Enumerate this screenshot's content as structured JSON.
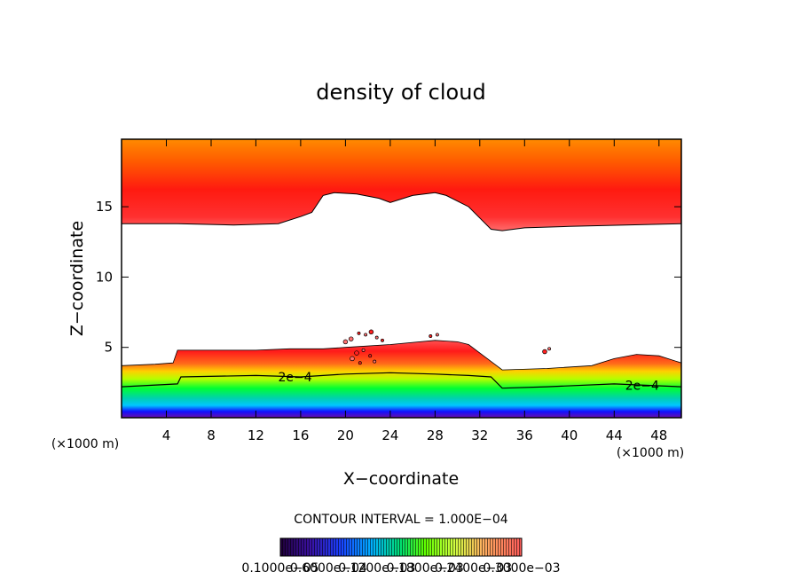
{
  "chart_data": {
    "type": "heatmap",
    "title": "density of cloud",
    "xlabel": "X−coordinate",
    "ylabel": "Z−coordinate",
    "x_unit_left": "(×1000 m)",
    "x_unit_right": "(×1000 m)",
    "xlim": [
      0,
      50
    ],
    "ylim": [
      0,
      19.8
    ],
    "x_ticks": [
      4,
      8,
      12,
      16,
      20,
      24,
      28,
      32,
      36,
      40,
      44,
      48
    ],
    "y_ticks": [
      5,
      10,
      15
    ],
    "contour_interval_text": "CONTOUR INTERVAL = 1.000E−04",
    "contour_labels": [
      {
        "text": "2e−4",
        "x": 15.5,
        "z": 2.9
      },
      {
        "text": "2e−4",
        "x": 46.5,
        "z": 2.3
      }
    ],
    "colorbar_labels": [
      "0.1000e−05",
      "0.6000e−04",
      "0.1200e−03",
      "0.1800e−03",
      "0.2400e−03",
      "0.3000e−03"
    ],
    "upper_layer_base": [
      [
        0,
        13.8
      ],
      [
        5,
        13.8
      ],
      [
        10,
        13.7
      ],
      [
        14,
        13.8
      ],
      [
        16,
        14.3
      ],
      [
        17,
        14.6
      ],
      [
        18,
        15.8
      ],
      [
        19,
        16.0
      ],
      [
        21,
        15.9
      ],
      [
        23,
        15.6
      ],
      [
        24,
        15.3
      ],
      [
        26,
        15.8
      ],
      [
        28,
        16.0
      ],
      [
        29,
        15.8
      ],
      [
        31,
        15.0
      ],
      [
        32,
        14.2
      ],
      [
        33,
        13.4
      ],
      [
        34,
        13.3
      ],
      [
        36,
        13.5
      ],
      [
        40,
        13.6
      ],
      [
        45,
        13.7
      ],
      [
        50,
        13.8
      ]
    ],
    "lower_layer_top": [
      [
        0,
        3.7
      ],
      [
        3,
        3.8
      ],
      [
        4.6,
        3.9
      ],
      [
        5,
        4.8
      ],
      [
        10,
        4.8
      ],
      [
        12,
        4.8
      ],
      [
        15,
        4.9
      ],
      [
        18,
        4.9
      ],
      [
        20,
        5.0
      ],
      [
        24,
        5.2
      ],
      [
        28,
        5.5
      ],
      [
        30,
        5.4
      ],
      [
        31,
        5.2
      ],
      [
        33,
        4.0
      ],
      [
        34,
        3.4
      ],
      [
        38,
        3.5
      ],
      [
        42,
        3.7
      ],
      [
        44,
        4.2
      ],
      [
        46,
        4.5
      ],
      [
        48,
        4.4
      ],
      [
        50,
        3.9
      ]
    ],
    "contour_2e4": [
      [
        0,
        2.2
      ],
      [
        5,
        2.4
      ],
      [
        5.3,
        2.9
      ],
      [
        12,
        3.0
      ],
      [
        16,
        2.9
      ],
      [
        20,
        3.1
      ],
      [
        24,
        3.2
      ],
      [
        28,
        3.1
      ],
      [
        31,
        3.0
      ],
      [
        33,
        2.9
      ],
      [
        34,
        2.1
      ],
      [
        38,
        2.2
      ],
      [
        44,
        2.4
      ],
      [
        47,
        2.3
      ],
      [
        50,
        2.2
      ]
    ],
    "colors": {
      "orange": "#ff7a00",
      "red": "#ff0000",
      "light_red": "#ff5a5a",
      "yellow_green": "#b4ff00",
      "green": "#00ff33",
      "cyan": "#00c8ff",
      "blue": "#1010ff",
      "purple": "#6a0fa8"
    }
  }
}
